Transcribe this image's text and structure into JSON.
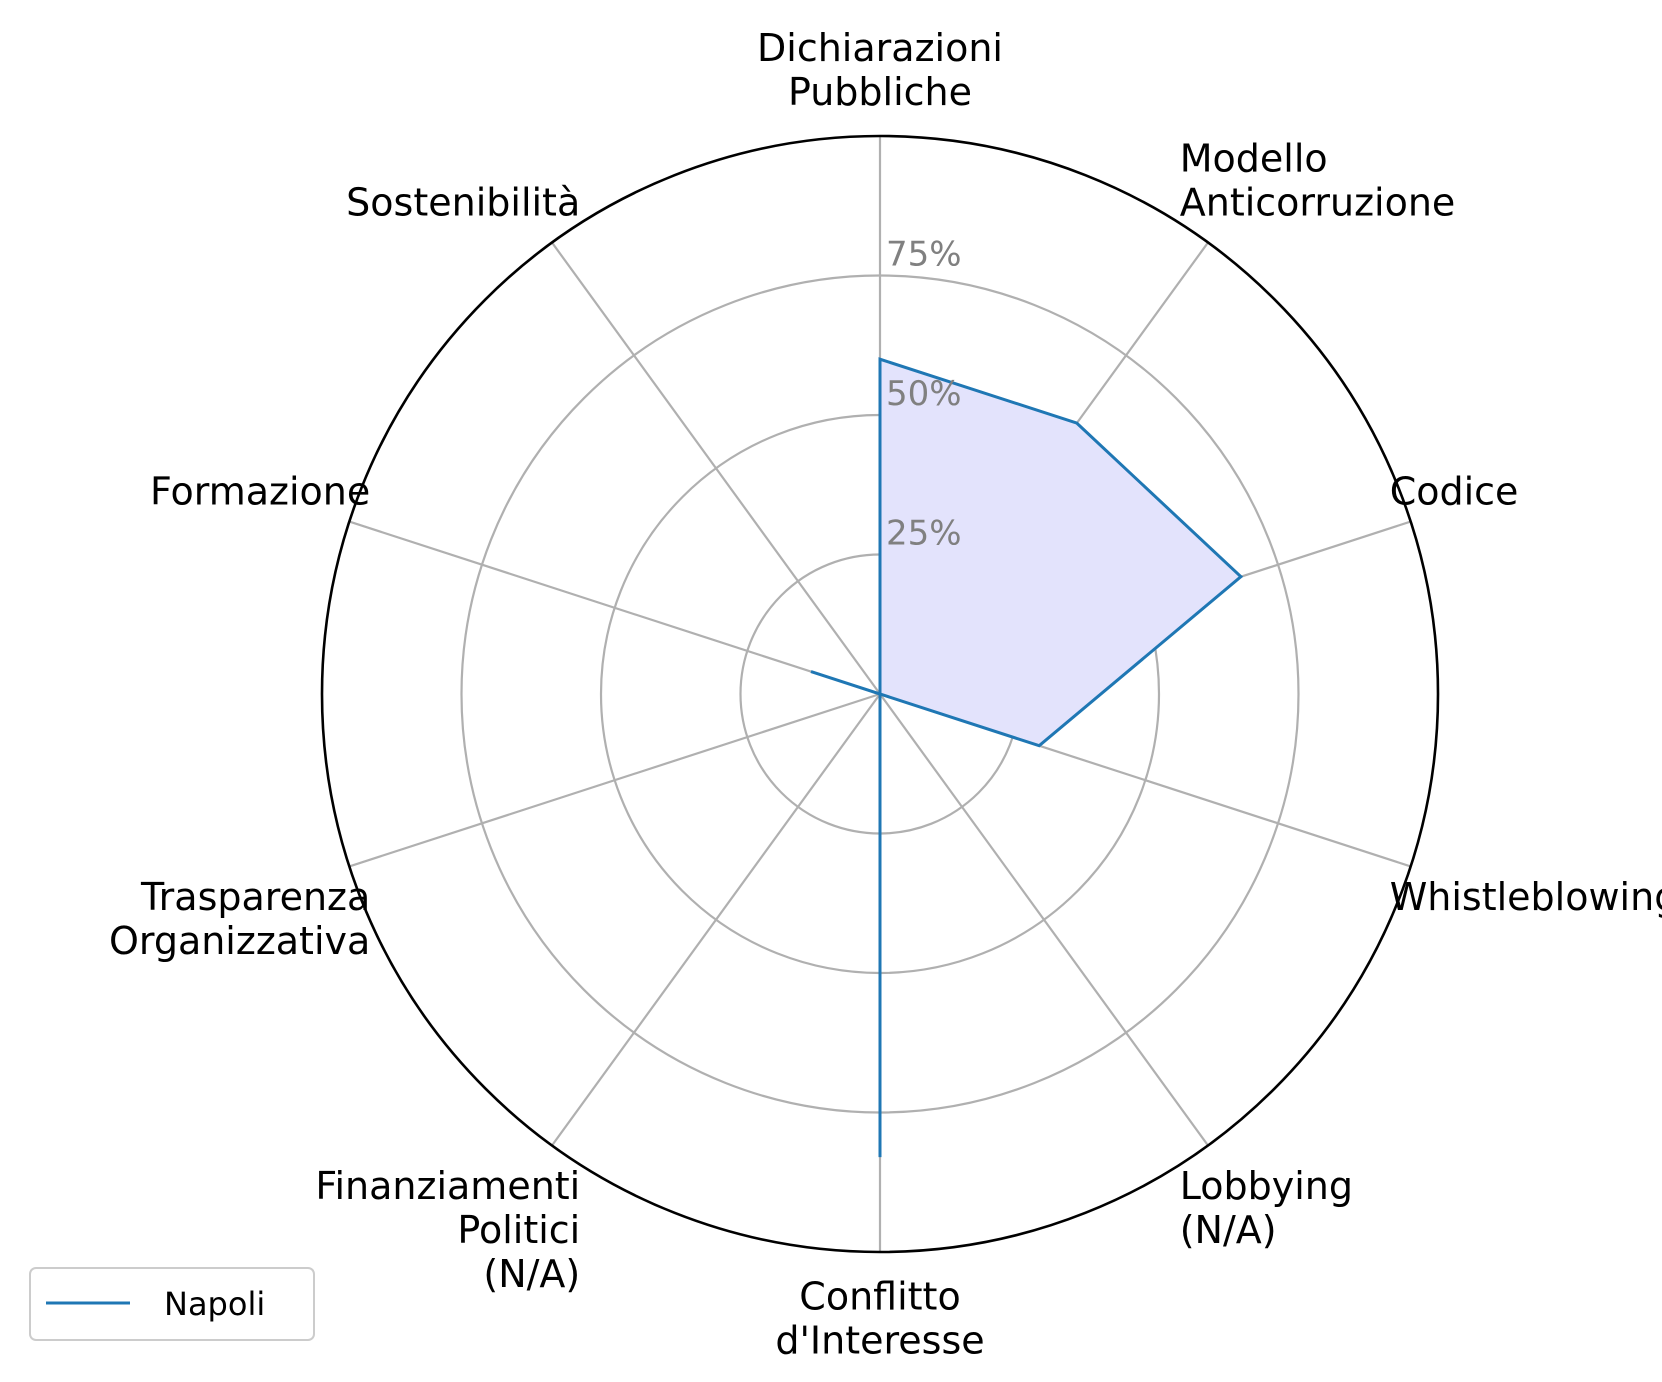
{
  "chart_data": {
    "type": "radar",
    "categories": [
      "Dichiarazioni\nPubbliche",
      "Modello\nAnticorruzione",
      "Codice",
      "Whistleblowing",
      "Lobbying\n(N/A)",
      "Conflitto\nd'Interesse",
      "Finanziamenti\nPolitici\n(N/A)",
      "Trasparenza\nOrganizzativa",
      "Formazione",
      "Sostenibilità"
    ],
    "series": [
      {
        "name": "Napoli",
        "values": [
          60,
          60,
          68,
          30,
          0,
          83,
          0,
          0,
          13,
          0
        ]
      }
    ],
    "rmax": 100,
    "rticks": [
      25,
      50,
      75,
      100
    ],
    "rtick_labels": [
      "25%",
      "50%",
      "75%",
      ""
    ],
    "grid": true,
    "legend_position": "bottom-left",
    "colors": {
      "line": "#1f77b4",
      "fill": "#e3e3fc",
      "grid": "#b0b0b0",
      "frame": "#000000",
      "tick_text": "#808080"
    }
  }
}
